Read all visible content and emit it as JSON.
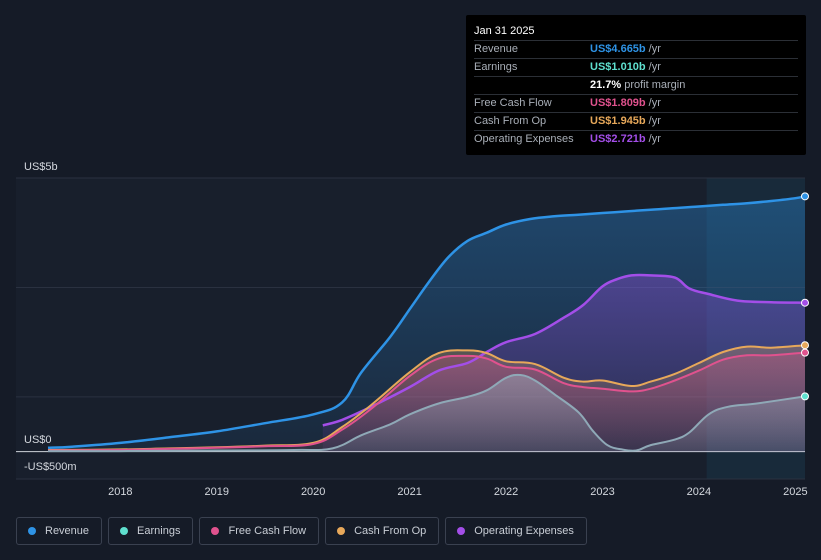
{
  "tooltip": {
    "date": "Jan 31 2025",
    "rows": [
      {
        "label": "Revenue",
        "value": "US$4.665b",
        "unit": "/yr",
        "color": "#2e93e6"
      },
      {
        "label": "Earnings",
        "value": "US$1.010b",
        "unit": "/yr",
        "color": "#5fe0cf"
      },
      {
        "label": "",
        "value": "21.7%",
        "unit": "profit margin",
        "color": "#ffffff"
      },
      {
        "label": "Free Cash Flow",
        "value": "US$1.809b",
        "unit": "/yr",
        "color": "#e0528e"
      },
      {
        "label": "Cash From Op",
        "value": "US$1.945b",
        "unit": "/yr",
        "color": "#e7a85a"
      },
      {
        "label": "Operating Expenses",
        "value": "US$2.721b",
        "unit": "/yr",
        "color": "#a34ee8"
      }
    ]
  },
  "chart_data": {
    "type": "area",
    "y_unit_labels": {
      "top": "US$5b",
      "zero": "US$0",
      "bottom": "-US$500m"
    },
    "ylim": [
      -0.5,
      5.0
    ],
    "xlim": [
      2017.25,
      2025.1
    ],
    "x_ticks": [
      "2018",
      "2019",
      "2020",
      "2021",
      "2022",
      "2023",
      "2024",
      "2025"
    ],
    "x_tick_values": [
      2018,
      2019,
      2020,
      2021,
      2022,
      2023,
      2024,
      2025
    ],
    "highlight_start": 2024.08,
    "series": [
      {
        "name": "Revenue",
        "color": "#2e93e6",
        "x": [
          2017.25,
          2017.5,
          2018.0,
          2018.5,
          2019.0,
          2019.5,
          2020.0,
          2020.3,
          2020.5,
          2020.8,
          2021.0,
          2021.2,
          2021.4,
          2021.6,
          2021.8,
          2022.0,
          2022.25,
          2022.5,
          2022.75,
          2023.0,
          2023.25,
          2023.5,
          2023.75,
          2024.0,
          2024.25,
          2024.5,
          2024.75,
          2025.0,
          2025.1
        ],
        "y": [
          0.07,
          0.09,
          0.16,
          0.26,
          0.37,
          0.52,
          0.68,
          0.9,
          1.45,
          2.1,
          2.6,
          3.1,
          3.55,
          3.85,
          4.0,
          4.15,
          4.25,
          4.3,
          4.33,
          4.36,
          4.39,
          4.42,
          4.45,
          4.48,
          4.51,
          4.54,
          4.58,
          4.63,
          4.665
        ]
      },
      {
        "name": "Operating Expenses",
        "color": "#a34ee8",
        "x": [
          2020.1,
          2020.3,
          2020.6,
          2021.0,
          2021.3,
          2021.6,
          2021.8,
          2022.0,
          2022.3,
          2022.6,
          2022.8,
          2023.0,
          2023.15,
          2023.3,
          2023.5,
          2023.75,
          2023.9,
          2024.1,
          2024.4,
          2024.75,
          2025.1
        ],
        "y": [
          0.48,
          0.58,
          0.82,
          1.18,
          1.48,
          1.62,
          1.82,
          2.0,
          2.15,
          2.45,
          2.68,
          3.02,
          3.15,
          3.22,
          3.22,
          3.18,
          2.98,
          2.88,
          2.76,
          2.73,
          2.721
        ]
      },
      {
        "name": "Cash From Op",
        "color": "#e7a85a",
        "x": [
          2017.25,
          2018.0,
          2018.5,
          2019.0,
          2019.5,
          2020.0,
          2020.3,
          2020.6,
          2021.0,
          2021.3,
          2021.6,
          2021.8,
          2022.0,
          2022.3,
          2022.6,
          2022.8,
          2023.0,
          2023.3,
          2023.5,
          2023.75,
          2024.0,
          2024.25,
          2024.5,
          2024.75,
          2025.1
        ],
        "y": [
          0.03,
          0.04,
          0.06,
          0.08,
          0.11,
          0.16,
          0.45,
          0.85,
          1.45,
          1.8,
          1.85,
          1.8,
          1.65,
          1.6,
          1.35,
          1.28,
          1.3,
          1.2,
          1.28,
          1.42,
          1.62,
          1.82,
          1.92,
          1.9,
          1.945
        ]
      },
      {
        "name": "Free Cash Flow",
        "color": "#e0528e",
        "x": [
          2017.25,
          2018.0,
          2018.5,
          2019.0,
          2019.5,
          2020.0,
          2020.3,
          2020.6,
          2021.0,
          2021.3,
          2021.6,
          2021.8,
          2022.0,
          2022.3,
          2022.6,
          2022.8,
          2023.0,
          2023.3,
          2023.5,
          2023.75,
          2024.0,
          2024.25,
          2024.5,
          2024.75,
          2025.1
        ],
        "y": [
          0.02,
          0.03,
          0.05,
          0.07,
          0.1,
          0.14,
          0.4,
          0.78,
          1.38,
          1.7,
          1.75,
          1.7,
          1.55,
          1.5,
          1.25,
          1.18,
          1.15,
          1.1,
          1.15,
          1.3,
          1.48,
          1.68,
          1.76,
          1.76,
          1.809
        ]
      },
      {
        "name": "Earnings",
        "color": "#5fe0cf",
        "x": [
          2017.25,
          2018.0,
          2019.0,
          2019.8,
          2020.2,
          2020.5,
          2020.8,
          2021.0,
          2021.3,
          2021.6,
          2021.8,
          2022.0,
          2022.15,
          2022.3,
          2022.5,
          2022.75,
          2022.9,
          2023.05,
          2023.2,
          2023.35,
          2023.5,
          2023.75,
          2023.9,
          2024.1,
          2024.3,
          2024.6,
          2025.1
        ],
        "y": [
          0.01,
          0.01,
          0.02,
          0.03,
          0.06,
          0.3,
          0.5,
          0.68,
          0.88,
          1.0,
          1.12,
          1.35,
          1.4,
          1.3,
          1.05,
          0.72,
          0.38,
          0.12,
          0.04,
          0.02,
          0.12,
          0.22,
          0.35,
          0.68,
          0.82,
          0.88,
          1.01
        ]
      }
    ]
  },
  "legend": [
    {
      "label": "Revenue",
      "color": "#2e93e6"
    },
    {
      "label": "Earnings",
      "color": "#5fe0cf"
    },
    {
      "label": "Free Cash Flow",
      "color": "#e0528e"
    },
    {
      "label": "Cash From Op",
      "color": "#e7a85a"
    },
    {
      "label": "Operating Expenses",
      "color": "#a34ee8"
    }
  ]
}
